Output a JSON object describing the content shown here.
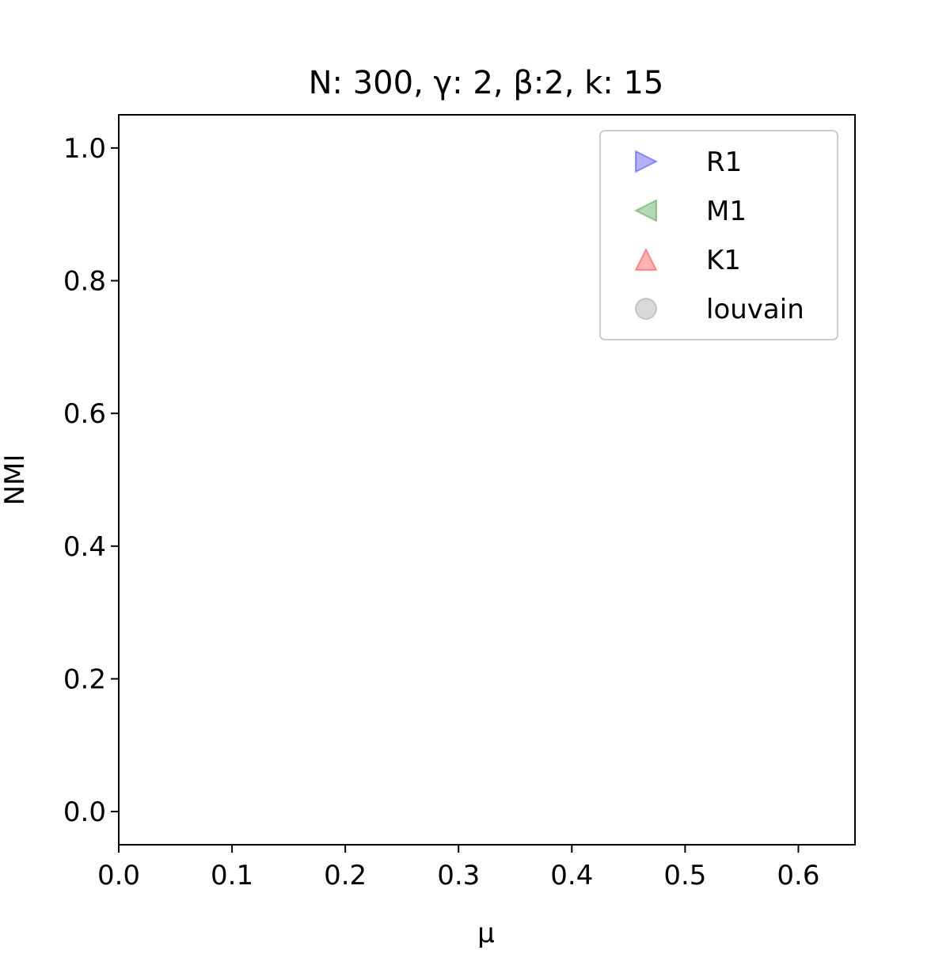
{
  "chart_data": {
    "type": "scatter",
    "title": "N: 300, γ: 2, β:2, k: 15",
    "xlabel": "μ",
    "ylabel": "NMI",
    "xlim": [
      0.0,
      0.65
    ],
    "ylim": [
      -0.05,
      1.05
    ],
    "xticks": [
      0.0,
      0.1,
      0.2,
      0.3,
      0.4,
      0.5,
      0.6
    ],
    "xtick_labels": [
      "0.0",
      "0.1",
      "0.2",
      "0.3",
      "0.4",
      "0.5",
      "0.6"
    ],
    "yticks": [
      0.0,
      0.2,
      0.4,
      0.6,
      0.8,
      1.0
    ],
    "ytick_labels": [
      "0.0",
      "0.2",
      "0.4",
      "0.6",
      "0.8",
      "1.0"
    ],
    "grid": false,
    "legend_position": "top-right",
    "series": [
      {
        "name": "R1",
        "marker": "triangle-right",
        "color": "#0000ff",
        "points": []
      },
      {
        "name": "M1",
        "marker": "triangle-left",
        "color": "#008000",
        "points": []
      },
      {
        "name": "K1",
        "marker": "triangle-up",
        "color": "#ff0000",
        "points": []
      },
      {
        "name": "louvain",
        "marker": "circle",
        "color": "#808080",
        "points": []
      }
    ]
  }
}
